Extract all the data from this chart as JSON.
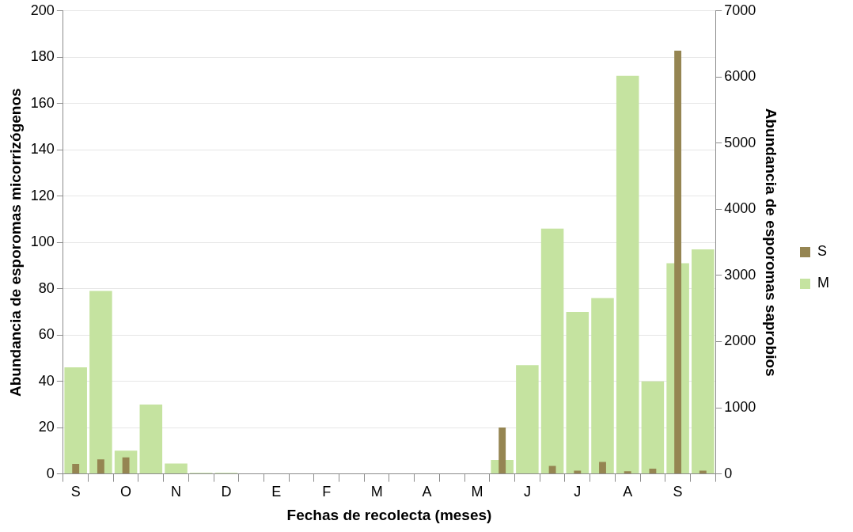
{
  "chart_data": {
    "type": "bar",
    "xlabel": "Fechas de recolecta (meses)",
    "ylabel": "Abundancia de esporomas micorrizógenos",
    "y2label": "Abundancia de esporomas saprobios",
    "categories": [
      "S",
      null,
      "O",
      null,
      "N",
      null,
      "D",
      null,
      "E",
      null,
      "F",
      null,
      "M",
      null,
      "A",
      null,
      "M",
      null,
      "J",
      null,
      "J",
      null,
      "A",
      null,
      "S",
      null
    ],
    "series": [
      {
        "name": "M",
        "color": "#c5e3a0",
        "values": [
          46,
          79,
          10,
          30,
          4.5,
          0.5,
          0.5,
          0,
          0,
          0,
          0,
          0,
          0,
          0,
          0,
          0,
          0,
          6,
          47,
          106,
          70,
          76,
          172,
          40,
          91,
          97
        ]
      },
      {
        "name": "S",
        "color": "#958552",
        "axis": "y2",
        "values": [
          150,
          220,
          250,
          0,
          0,
          0,
          0,
          0,
          0,
          0,
          0,
          0,
          0,
          0,
          0,
          0,
          0,
          700,
          0,
          120,
          50,
          180,
          40,
          80,
          6400,
          50
        ]
      }
    ],
    "ylim": [
      0,
      200
    ],
    "yticks": [
      0,
      20,
      40,
      60,
      80,
      100,
      120,
      140,
      160,
      180,
      200
    ],
    "y2lim": [
      0,
      7000
    ],
    "y2ticks": [
      0,
      1000,
      2000,
      3000,
      4000,
      5000,
      6000,
      7000
    ],
    "grid": "y",
    "legend": "right"
  }
}
